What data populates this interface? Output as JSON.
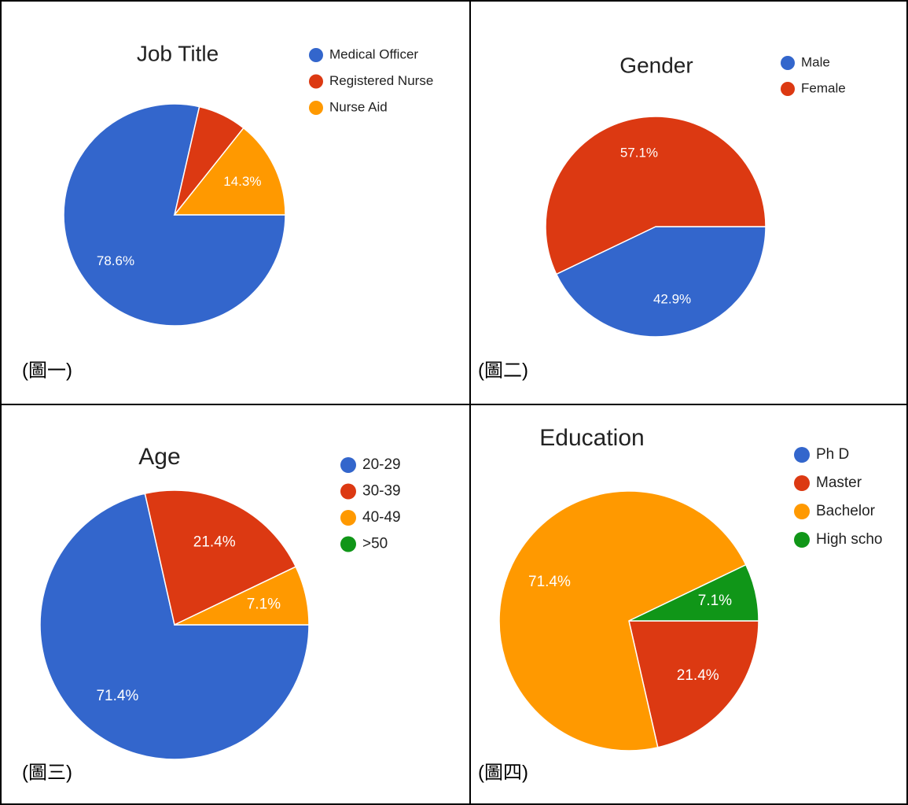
{
  "chart_data": [
    {
      "type": "pie",
      "title": "Job Title",
      "caption": "(圖一)",
      "categories": [
        "Medical Officer",
        "Registered Nurse",
        "Nurse Aid"
      ],
      "values": [
        78.6,
        7.1,
        14.3
      ],
      "value_labels": [
        "78.6%",
        null,
        "14.3%"
      ],
      "colors": [
        "#3366cc",
        "#dc3912",
        "#ff9900"
      ],
      "legend": "right"
    },
    {
      "type": "pie",
      "title": "Gender",
      "caption": "(圖二)",
      "categories": [
        "Male",
        "Female"
      ],
      "values": [
        42.9,
        57.1
      ],
      "value_labels": [
        "42.9%",
        "57.1%"
      ],
      "colors": [
        "#3366cc",
        "#dc3912"
      ],
      "legend": "right"
    },
    {
      "type": "pie",
      "title": "Age",
      "caption": "(圖三)",
      "categories": [
        "20-29",
        "30-39",
        "40-49",
        ">50"
      ],
      "values": [
        71.4,
        21.4,
        7.1,
        0
      ],
      "value_labels": [
        "71.4%",
        "21.4%",
        "7.1%",
        null
      ],
      "colors": [
        "#3366cc",
        "#dc3912",
        "#ff9900",
        "#109618"
      ],
      "legend": "right"
    },
    {
      "type": "pie",
      "title": "Education",
      "caption": "(圖四)",
      "categories": [
        "Ph D",
        "Master",
        "Bachelor",
        "High scho"
      ],
      "values": [
        0,
        21.4,
        71.4,
        7.1
      ],
      "value_labels": [
        null,
        "21.4%",
        "71.4%",
        "7.1%"
      ],
      "colors": [
        "#3366cc",
        "#dc3912",
        "#ff9900",
        "#109618"
      ],
      "legend": "right"
    }
  ]
}
